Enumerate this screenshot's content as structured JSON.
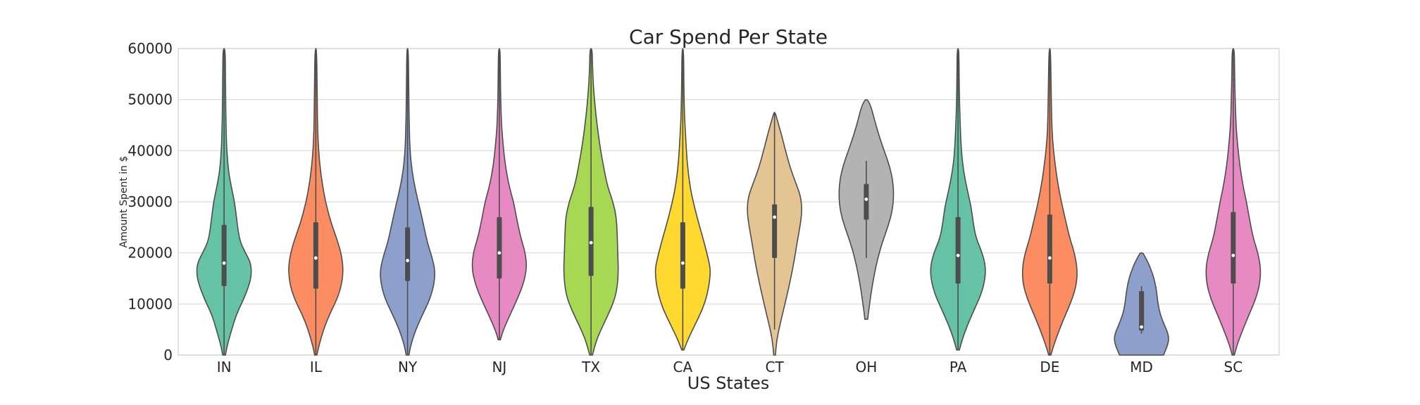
{
  "chart_data": {
    "type": "violin",
    "title": "Car Spend Per State",
    "xlabel": "US States",
    "ylabel": "Amount Spent in $",
    "ylim": [
      0,
      60000
    ],
    "yticks": [
      0,
      10000,
      20000,
      30000,
      40000,
      50000,
      60000
    ],
    "grid": true,
    "categories": [
      "IN",
      "IL",
      "NY",
      "NJ",
      "TX",
      "CA",
      "CT",
      "OH",
      "PA",
      "DE",
      "MD",
      "SC"
    ],
    "series": [
      {
        "state": "IN",
        "color": "#66c2a5",
        "min": 0,
        "max": 60000,
        "q1": 13500,
        "median": 18000,
        "q3": 25500,
        "whisker_low": 0,
        "whisker_high": 60000,
        "profile": [
          [
            0,
            0.05
          ],
          [
            2000,
            0.12
          ],
          [
            5000,
            0.28
          ],
          [
            8000,
            0.45
          ],
          [
            11000,
            0.72
          ],
          [
            14000,
            0.93
          ],
          [
            16000,
            1.0
          ],
          [
            18000,
            0.97
          ],
          [
            20000,
            0.78
          ],
          [
            22000,
            0.6
          ],
          [
            24000,
            0.52
          ],
          [
            27000,
            0.45
          ],
          [
            30000,
            0.38
          ],
          [
            33000,
            0.26
          ],
          [
            36000,
            0.16
          ],
          [
            40000,
            0.1
          ],
          [
            43000,
            0.08
          ],
          [
            48000,
            0.06
          ],
          [
            55000,
            0.05
          ],
          [
            60000,
            0.04
          ]
        ]
      },
      {
        "state": "IL",
        "color": "#fc8d62",
        "min": 0,
        "max": 60000,
        "q1": 13000,
        "median": 19000,
        "q3": 26000,
        "whisker_low": 0,
        "whisker_high": 60000,
        "profile": [
          [
            0,
            0.04
          ],
          [
            2000,
            0.12
          ],
          [
            5000,
            0.28
          ],
          [
            8000,
            0.5
          ],
          [
            11000,
            0.78
          ],
          [
            14000,
            0.95
          ],
          [
            17000,
            1.0
          ],
          [
            20000,
            0.92
          ],
          [
            23000,
            0.75
          ],
          [
            26000,
            0.55
          ],
          [
            30000,
            0.35
          ],
          [
            34000,
            0.22
          ],
          [
            38000,
            0.13
          ],
          [
            42000,
            0.08
          ],
          [
            46000,
            0.06
          ],
          [
            52000,
            0.05
          ],
          [
            60000,
            0.03
          ]
        ]
      },
      {
        "state": "NY",
        "color": "#8da0cb",
        "min": 0,
        "max": 60000,
        "q1": 14500,
        "median": 18500,
        "q3": 25000,
        "whisker_low": 0,
        "whisker_high": 60000,
        "profile": [
          [
            0,
            0.05
          ],
          [
            2000,
            0.12
          ],
          [
            5000,
            0.3
          ],
          [
            8000,
            0.55
          ],
          [
            11000,
            0.82
          ],
          [
            14000,
            0.97
          ],
          [
            16500,
            1.0
          ],
          [
            19000,
            0.9
          ],
          [
            22000,
            0.72
          ],
          [
            25000,
            0.6
          ],
          [
            28000,
            0.48
          ],
          [
            32000,
            0.3
          ],
          [
            36000,
            0.16
          ],
          [
            40000,
            0.09
          ],
          [
            45000,
            0.06
          ],
          [
            52000,
            0.04
          ],
          [
            60000,
            0.03
          ]
        ]
      },
      {
        "state": "NJ",
        "color": "#e78ac3",
        "min": 3000,
        "max": 60000,
        "q1": 15000,
        "median": 20000,
        "q3": 27000,
        "whisker_low": 3000,
        "whisker_high": 60000,
        "profile": [
          [
            3000,
            0.04
          ],
          [
            5000,
            0.15
          ],
          [
            8000,
            0.4
          ],
          [
            11000,
            0.66
          ],
          [
            14000,
            0.88
          ],
          [
            17000,
            1.0
          ],
          [
            20000,
            0.95
          ],
          [
            23000,
            0.78
          ],
          [
            27000,
            0.62
          ],
          [
            30000,
            0.52
          ],
          [
            33000,
            0.36
          ],
          [
            37000,
            0.22
          ],
          [
            41000,
            0.14
          ],
          [
            45000,
            0.08
          ],
          [
            50000,
            0.05
          ],
          [
            55000,
            0.04
          ],
          [
            60000,
            0.03
          ]
        ]
      },
      {
        "state": "TX",
        "color": "#a6d854",
        "min": 0,
        "max": 60000,
        "q1": 15500,
        "median": 22000,
        "q3": 29000,
        "whisker_low": 0,
        "whisker_high": 60000,
        "profile": [
          [
            0,
            0.05
          ],
          [
            3000,
            0.2
          ],
          [
            6000,
            0.45
          ],
          [
            9000,
            0.72
          ],
          [
            12000,
            0.92
          ],
          [
            16000,
            1.0
          ],
          [
            20000,
            0.97
          ],
          [
            24000,
            0.95
          ],
          [
            27000,
            0.92
          ],
          [
            30000,
            0.8
          ],
          [
            33000,
            0.6
          ],
          [
            37000,
            0.45
          ],
          [
            41000,
            0.32
          ],
          [
            45000,
            0.22
          ],
          [
            49000,
            0.14
          ],
          [
            53000,
            0.08
          ],
          [
            57000,
            0.05
          ],
          [
            60000,
            0.04
          ]
        ]
      },
      {
        "state": "CA",
        "color": "#ffd92f",
        "min": 1000,
        "max": 60000,
        "q1": 13000,
        "median": 18000,
        "q3": 26000,
        "whisker_low": 1000,
        "whisker_high": 60000,
        "profile": [
          [
            1000,
            0.04
          ],
          [
            3000,
            0.18
          ],
          [
            6000,
            0.45
          ],
          [
            9000,
            0.72
          ],
          [
            12000,
            0.9
          ],
          [
            15000,
            0.99
          ],
          [
            17000,
            1.0
          ],
          [
            19000,
            0.92
          ],
          [
            22000,
            0.78
          ],
          [
            25000,
            0.62
          ],
          [
            29000,
            0.42
          ],
          [
            33000,
            0.26
          ],
          [
            38000,
            0.15
          ],
          [
            43000,
            0.1
          ],
          [
            47000,
            0.06
          ],
          [
            53000,
            0.04
          ],
          [
            60000,
            0.03
          ]
        ]
      },
      {
        "state": "CT",
        "color": "#e5c494",
        "min": 0,
        "max": 47500,
        "q1": 19000,
        "median": 27000,
        "q3": 29500,
        "whisker_low": 5000,
        "whisker_high": 47500,
        "profile": [
          [
            0,
            0.03
          ],
          [
            3000,
            0.08
          ],
          [
            6000,
            0.2
          ],
          [
            10000,
            0.38
          ],
          [
            14000,
            0.55
          ],
          [
            18000,
            0.7
          ],
          [
            22000,
            0.82
          ],
          [
            25000,
            0.92
          ],
          [
            28000,
            1.0
          ],
          [
            31000,
            0.96
          ],
          [
            34000,
            0.75
          ],
          [
            37000,
            0.55
          ],
          [
            40000,
            0.4
          ],
          [
            43000,
            0.26
          ],
          [
            46000,
            0.1
          ],
          [
            47500,
            0.02
          ]
        ]
      },
      {
        "state": "OH",
        "color": "#b3b3b3",
        "min": 7000,
        "max": 50000,
        "q1": 26500,
        "median": 30500,
        "q3": 33500,
        "whisker_low": 19000,
        "whisker_high": 38000,
        "profile": [
          [
            7000,
            0.05
          ],
          [
            10000,
            0.12
          ],
          [
            13000,
            0.2
          ],
          [
            16000,
            0.3
          ],
          [
            19000,
            0.42
          ],
          [
            22000,
            0.58
          ],
          [
            25000,
            0.78
          ],
          [
            28000,
            0.94
          ],
          [
            31000,
            1.0
          ],
          [
            34000,
            0.97
          ],
          [
            37000,
            0.85
          ],
          [
            40000,
            0.65
          ],
          [
            43000,
            0.46
          ],
          [
            46000,
            0.3
          ],
          [
            48500,
            0.18
          ],
          [
            50000,
            0.05
          ]
        ]
      },
      {
        "state": "PA",
        "color": "#66c2a5",
        "min": 1000,
        "max": 60000,
        "q1": 14000,
        "median": 19500,
        "q3": 27000,
        "whisker_low": 1000,
        "whisker_high": 60000,
        "profile": [
          [
            1000,
            0.05
          ],
          [
            3000,
            0.15
          ],
          [
            6000,
            0.35
          ],
          [
            9000,
            0.6
          ],
          [
            12000,
            0.85
          ],
          [
            15000,
            0.99
          ],
          [
            17500,
            1.0
          ],
          [
            20000,
            0.88
          ],
          [
            23000,
            0.65
          ],
          [
            26000,
            0.55
          ],
          [
            29000,
            0.48
          ],
          [
            32000,
            0.35
          ],
          [
            36000,
            0.2
          ],
          [
            40000,
            0.12
          ],
          [
            45000,
            0.08
          ],
          [
            50000,
            0.05
          ],
          [
            55000,
            0.04
          ],
          [
            60000,
            0.03
          ]
        ]
      },
      {
        "state": "DE",
        "color": "#fc8d62",
        "min": 0,
        "max": 60000,
        "q1": 14000,
        "median": 19000,
        "q3": 27500,
        "whisker_low": 0,
        "whisker_high": 60000,
        "profile": [
          [
            0,
            0.04
          ],
          [
            2000,
            0.15
          ],
          [
            5000,
            0.35
          ],
          [
            8000,
            0.58
          ],
          [
            11000,
            0.82
          ],
          [
            14000,
            0.98
          ],
          [
            17000,
            1.0
          ],
          [
            20000,
            0.9
          ],
          [
            23000,
            0.72
          ],
          [
            27000,
            0.55
          ],
          [
            30000,
            0.42
          ],
          [
            34000,
            0.28
          ],
          [
            38000,
            0.18
          ],
          [
            42000,
            0.1
          ],
          [
            46000,
            0.07
          ],
          [
            52000,
            0.05
          ],
          [
            60000,
            0.03
          ]
        ]
      },
      {
        "state": "MD",
        "color": "#8da0cb",
        "min": 0,
        "max": 20000,
        "q1": 4800,
        "median": 5500,
        "q3": 12500,
        "whisker_low": 4200,
        "whisker_high": 13500,
        "profile": [
          [
            0,
            0.8
          ],
          [
            1500,
            0.92
          ],
          [
            3000,
            1.0
          ],
          [
            4500,
            0.95
          ],
          [
            6000,
            0.82
          ],
          [
            8000,
            0.68
          ],
          [
            10000,
            0.6
          ],
          [
            12000,
            0.56
          ],
          [
            14000,
            0.5
          ],
          [
            16000,
            0.4
          ],
          [
            18000,
            0.25
          ],
          [
            19500,
            0.1
          ],
          [
            20000,
            0.05
          ]
        ]
      },
      {
        "state": "SC",
        "color": "#e78ac3",
        "min": 0,
        "max": 60000,
        "q1": 14000,
        "median": 19500,
        "q3": 28000,
        "whisker_low": 0,
        "whisker_high": 60000,
        "profile": [
          [
            0,
            0.04
          ],
          [
            2000,
            0.14
          ],
          [
            5000,
            0.35
          ],
          [
            8000,
            0.58
          ],
          [
            11000,
            0.82
          ],
          [
            14000,
            0.97
          ],
          [
            17000,
            1.0
          ],
          [
            20000,
            0.9
          ],
          [
            23000,
            0.72
          ],
          [
            27000,
            0.58
          ],
          [
            30000,
            0.48
          ],
          [
            33000,
            0.36
          ],
          [
            37000,
            0.24
          ],
          [
            41000,
            0.16
          ],
          [
            45000,
            0.1
          ],
          [
            50000,
            0.07
          ],
          [
            55000,
            0.05
          ],
          [
            60000,
            0.04
          ]
        ]
      }
    ]
  }
}
